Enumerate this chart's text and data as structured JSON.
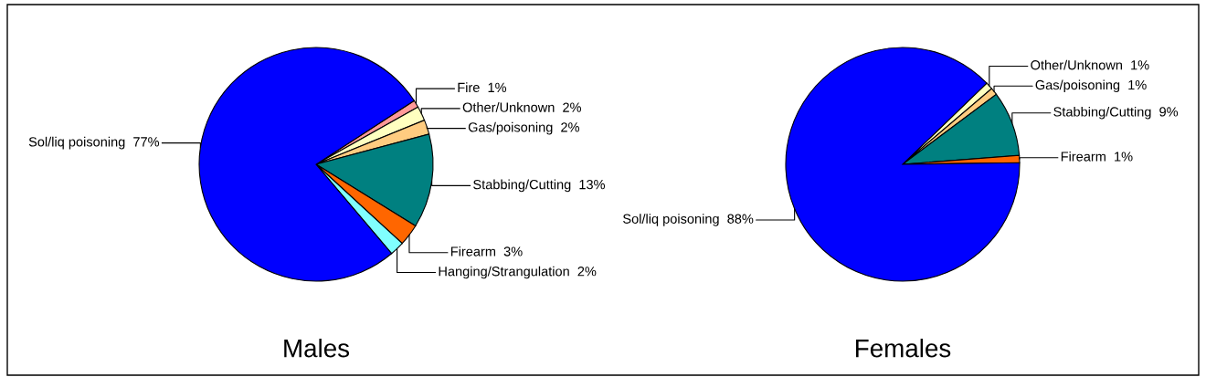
{
  "chart_data": [
    {
      "type": "pie",
      "title": "Males",
      "categories": [
        "Fire",
        "Other/Unknown",
        "Gas/poisoning",
        "Stabbing/Cutting",
        "Firearm",
        "Hanging/Strangulation",
        "Sol/liq poisoning"
      ],
      "values": [
        1,
        2,
        2,
        13,
        3,
        2,
        77
      ],
      "value_labels": [
        "1%",
        "2%",
        "2%",
        "13%",
        "3%",
        "2%",
        "77%"
      ],
      "colors": [
        "#ff9999",
        "#ffffc0",
        "#ffcc80",
        "#008080",
        "#ff6600",
        "#80ffff",
        "#0000ff"
      ]
    },
    {
      "type": "pie",
      "title": "Females",
      "categories": [
        "Other/Unknown",
        "Gas/poisoning",
        "Stabbing/Cutting",
        "Firearm",
        "Sol/liq poisoning"
      ],
      "values": [
        1,
        1,
        9,
        1,
        88
      ],
      "value_labels": [
        "1%",
        "1%",
        "9%",
        "1%",
        "88%"
      ],
      "colors": [
        "#ffffc0",
        "#ffcc80",
        "#008080",
        "#ff6600",
        "#0000ff"
      ]
    }
  ]
}
